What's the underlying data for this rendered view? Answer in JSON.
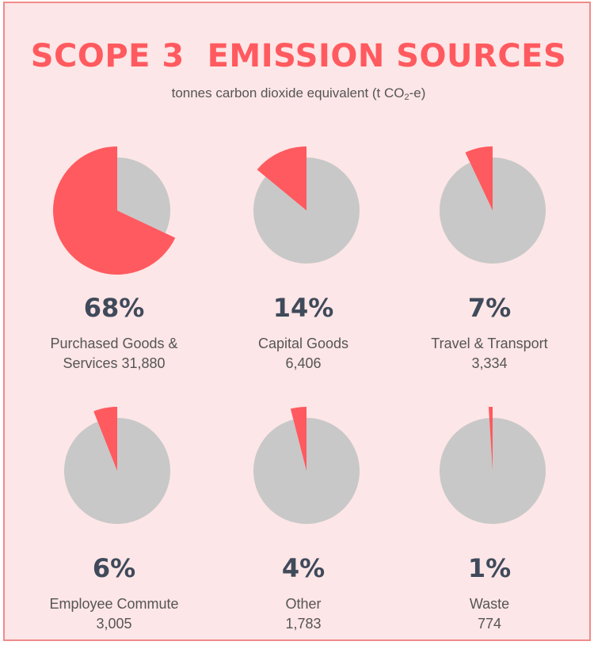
{
  "header": {
    "title": "SCOPE 3  EMISSION SOURCES",
    "subtitle_prefix": "tonnes carbon dioxide equivalent (t CO",
    "subtitle_sub": "2",
    "subtitle_suffix": "-e)"
  },
  "colors": {
    "highlight": "#ff5a5f",
    "remainder": "#c8c8c8",
    "background": "#fde6e7",
    "text": "#3f4a5a"
  },
  "chart_data": {
    "type": "pie",
    "title": "SCOPE 3  EMISSION SOURCES",
    "units": "tonnes carbon dioxide equivalent (t CO2-e)",
    "items": [
      {
        "pct_label": "68%",
        "share": 68,
        "line1": "Purchased Goods &",
        "line2": "Services 31,880",
        "value": 31880
      },
      {
        "pct_label": "14%",
        "share": 14,
        "line1": "Capital Goods",
        "line2": "6,406",
        "value": 6406
      },
      {
        "pct_label": "7%",
        "share": 7,
        "line1": "Travel & Transport",
        "line2": "3,334",
        "value": 3334
      },
      {
        "pct_label": "6%",
        "share": 6,
        "line1": "Employee Commute",
        "line2": "3,005",
        "value": 3005
      },
      {
        "pct_label": "4%",
        "share": 4,
        "line1": "Other",
        "line2": "1,783",
        "value": 1783
      },
      {
        "pct_label": "1%",
        "share": 1,
        "line1": "Waste",
        "line2": "774",
        "value": 774
      }
    ]
  }
}
